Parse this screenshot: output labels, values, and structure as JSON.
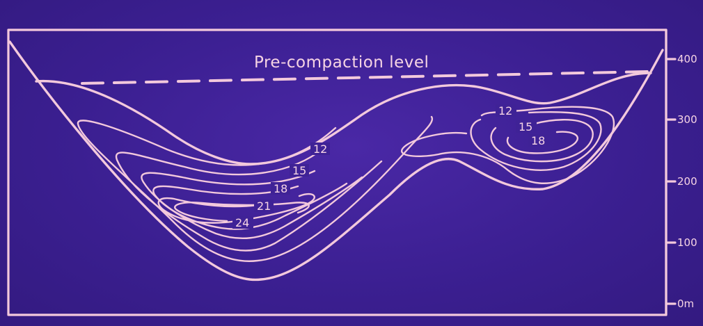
{
  "title": "Pre-compaction level",
  "axis": {
    "ticks": [
      {
        "value": 400,
        "label": "400"
      },
      {
        "value": 300,
        "label": "300"
      },
      {
        "value": 200,
        "label": "200"
      },
      {
        "value": 100,
        "label": "100"
      },
      {
        "value": 0,
        "label": "0m"
      }
    ]
  },
  "contour_labels": {
    "left": [
      "12",
      "15",
      "18",
      "21",
      "24"
    ],
    "right": [
      "12",
      "15",
      "18"
    ]
  },
  "colors": {
    "background": "#3b1f91",
    "lines": "#f3c9dc"
  }
}
